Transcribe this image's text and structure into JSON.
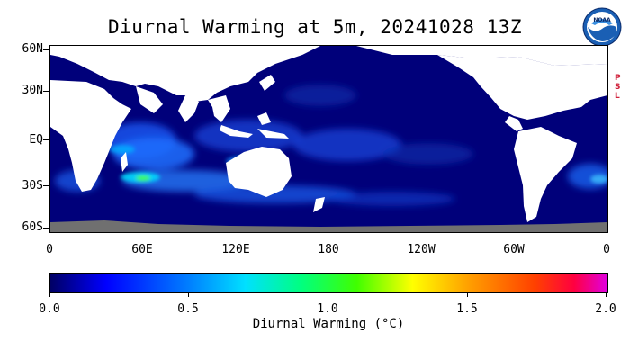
{
  "title": "Diurnal Warming at 5m, 20241028 13Z",
  "logo": {
    "name": "NOAA",
    "icon": "noaa-logo"
  },
  "psl_letters": [
    "P",
    "S",
    "L"
  ],
  "map": {
    "lat_labels": [
      "60N",
      "30N",
      "EQ",
      "30S",
      "60S"
    ],
    "lon_labels": [
      "0",
      "60E",
      "120E",
      "180",
      "120W",
      "60W",
      "0"
    ],
    "ocean_color": "#00007a",
    "land_color": "#ffffff",
    "ice_color": "#707070"
  },
  "colorbar": {
    "tick_labels": [
      "0.0",
      "0.5",
      "1.0",
      "1.5",
      "2.0"
    ],
    "label": "Diurnal Warming (°C)",
    "range": [
      0.0,
      2.0
    ],
    "colors": [
      "#000064",
      "#0000ff",
      "#0080ff",
      "#00e0ff",
      "#00ff80",
      "#40ff00",
      "#ffff00",
      "#ffa000",
      "#ff4000",
      "#ff0040",
      "#e000e0"
    ]
  }
}
